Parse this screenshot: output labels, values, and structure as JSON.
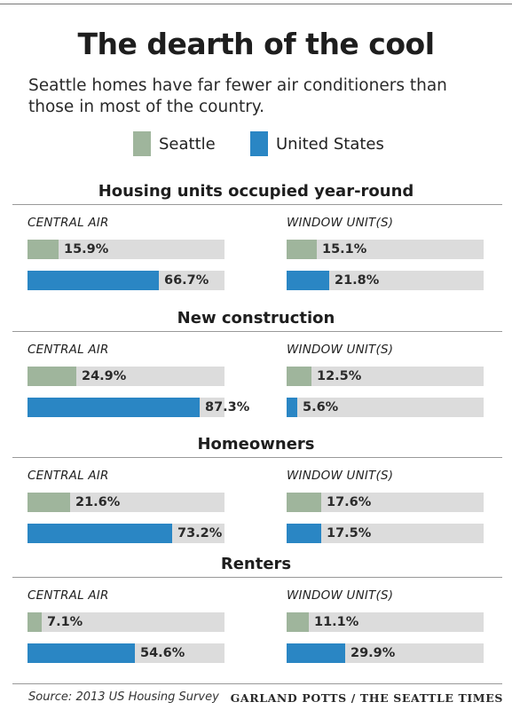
{
  "title": "The dearth of the cool",
  "subtitle": "Seattle homes have far fewer air conditioners than those in most of the country.",
  "colors": {
    "seattle": "#9fb59c",
    "us": "#2a86c4",
    "track": "#dcdcdc"
  },
  "legend": [
    {
      "name": "Seattle",
      "color_key": "seattle"
    },
    {
      "name": "United States",
      "color_key": "us"
    }
  ],
  "chart_data": {
    "type": "bar",
    "orientation": "horizontal",
    "xlim": [
      0,
      100
    ],
    "unit": "%",
    "column_labels": [
      "CENTRAL AIR",
      "WINDOW UNIT(S)"
    ],
    "groups": [
      {
        "name": "Housing units occupied year-round",
        "central_air": {
          "seattle": 15.9,
          "us": 66.7
        },
        "window_units": {
          "seattle": 15.1,
          "us": 21.8
        }
      },
      {
        "name": "New construction",
        "central_air": {
          "seattle": 24.9,
          "us": 87.3
        },
        "window_units": {
          "seattle": 12.5,
          "us": 5.6
        }
      },
      {
        "name": "Homeowners",
        "central_air": {
          "seattle": 21.6,
          "us": 73.2
        },
        "window_units": {
          "seattle": 17.6,
          "us": 17.5
        }
      },
      {
        "name": "Renters",
        "central_air": {
          "seattle": 7.1,
          "us": 54.6
        },
        "window_units": {
          "seattle": 11.1,
          "us": 29.9
        }
      }
    ]
  },
  "footer": {
    "source": "Source: 2013 US Housing Survey",
    "credit": "GARLAND POTTS / THE SEATTLE TIMES"
  }
}
